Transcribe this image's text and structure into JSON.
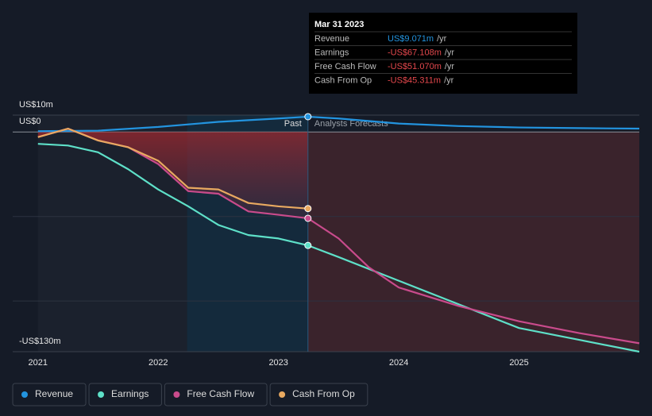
{
  "chart_data": {
    "type": "line",
    "xlim": [
      2020.79,
      2026.0
    ],
    "xticks": [
      2021,
      2022,
      2023,
      2024,
      2025
    ],
    "ylim": [
      -130,
      10
    ],
    "yticks": [
      {
        "value": 10,
        "label": "US$10m"
      },
      {
        "value": 0,
        "label": "US$0"
      },
      {
        "value": -130,
        "label": "-US$130m"
      }
    ],
    "gridlines": [
      -50,
      -100
    ],
    "divider": 2023.245,
    "highlight_start": 2022.24,
    "past_label": "Past",
    "forecast_label": "Analysts Forecasts",
    "series": [
      {
        "name": "Revenue",
        "color": "#2394df",
        "x": [
          2021.0,
          2021.5,
          2022.0,
          2022.5,
          2023.0,
          2023.245,
          2023.5,
          2024.0,
          2024.5,
          2025.0,
          2025.5,
          2026.0
        ],
        "values": [
          0.5,
          0.8,
          3,
          6,
          8,
          9.071,
          8,
          5,
          3.5,
          2.7,
          2.3,
          2
        ]
      },
      {
        "name": "Earnings",
        "color": "#5ee0c8",
        "x": [
          2021.0,
          2021.25,
          2021.5,
          2021.75,
          2022.0,
          2022.25,
          2022.5,
          2022.75,
          2023.0,
          2023.245,
          2023.5,
          2024.0,
          2024.5,
          2025.0,
          2025.5,
          2026.0
        ],
        "values": [
          -7,
          -8,
          -12,
          -22,
          -34,
          -44,
          -55,
          -61,
          -63,
          -67.108,
          -74,
          -88,
          -102,
          -116,
          -123,
          -130
        ]
      },
      {
        "name": "Free Cash Flow",
        "color": "#c94b8c",
        "x": [
          2021.0,
          2021.25,
          2021.5,
          2021.75,
          2022.0,
          2022.25,
          2022.5,
          2022.75,
          2023.0,
          2023.245,
          2023.5,
          2023.75,
          2024.0,
          2024.5,
          2025.0,
          2025.5,
          2026.0
        ],
        "values": [
          -3,
          2,
          -5,
          -9,
          -19,
          -35,
          -36.5,
          -47,
          -49,
          -51.07,
          -63,
          -80,
          -92,
          -103,
          -112,
          -119,
          -125
        ]
      },
      {
        "name": "Cash From Op",
        "color": "#e8a960",
        "x": [
          2021.0,
          2021.25,
          2021.5,
          2021.75,
          2022.0,
          2022.25,
          2022.5,
          2022.75,
          2023.0,
          2023.245
        ],
        "values": [
          -3,
          2,
          -5,
          -9,
          -17,
          -33,
          -34,
          -42,
          -44,
          -45.311
        ]
      }
    ],
    "tooltip": {
      "date": "Mar 31 2023",
      "unit": "/yr",
      "rows": [
        {
          "name": "Revenue",
          "value": 9.071,
          "label": "US$9.071m",
          "color": "#2394df"
        },
        {
          "name": "Earnings",
          "value": -67.108,
          "label": "-US$67.108m",
          "color": "#e5484d"
        },
        {
          "name": "Free Cash Flow",
          "value": -51.07,
          "label": "-US$51.070m",
          "color": "#e5484d"
        },
        {
          "name": "Cash From Op",
          "value": -45.311,
          "label": "-US$45.311m",
          "color": "#e5484d"
        }
      ]
    }
  }
}
